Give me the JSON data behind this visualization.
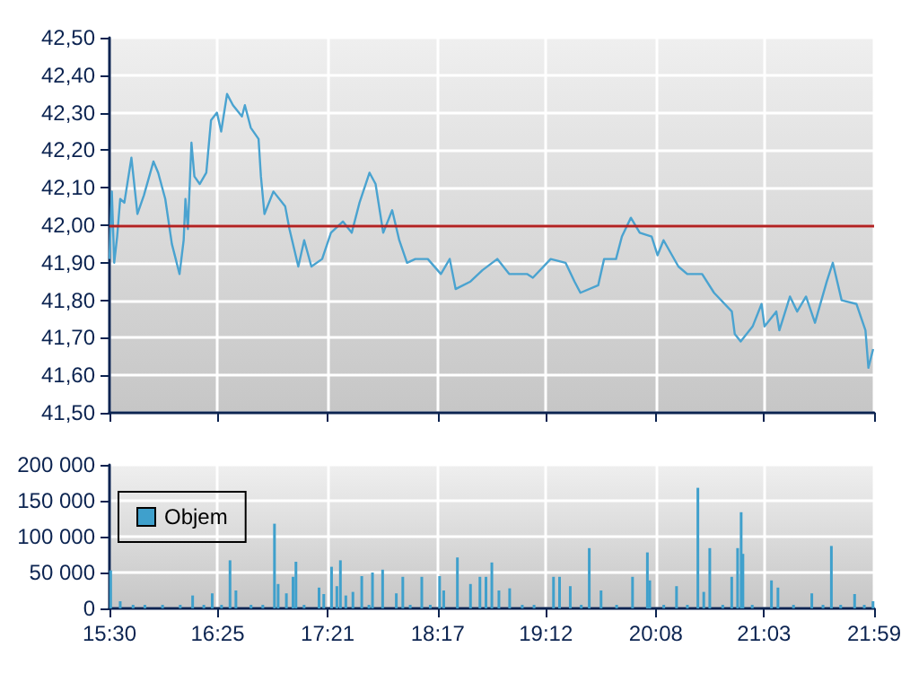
{
  "chart_data": [
    {
      "type": "line",
      "x": [
        15.5,
        15.52,
        15.54,
        15.565,
        15.591,
        15.626,
        15.686,
        15.737,
        15.792,
        15.873,
        15.913,
        15.973,
        16.029,
        16.094,
        16.129,
        16.144,
        16.165,
        16.195,
        16.22,
        16.265,
        16.321,
        16.361,
        16.411,
        16.447,
        16.497,
        16.547,
        16.623,
        16.648,
        16.698,
        16.764,
        16.784,
        16.814,
        16.89,
        16.99,
        17.026,
        17.101,
        17.151,
        17.212,
        17.303,
        17.378,
        17.479,
        17.554,
        17.62,
        17.705,
        17.756,
        17.821,
        17.897,
        17.957,
        18.023,
        18.093,
        18.199,
        18.31,
        18.385,
        18.435,
        18.561,
        18.662,
        18.788,
        18.889,
        19.04,
        19.09,
        19.241,
        19.367,
        19.443,
        19.493,
        19.644,
        19.694,
        19.795,
        19.845,
        19.921,
        19.996,
        20.097,
        20.147,
        20.198,
        20.324,
        20.399,
        20.525,
        20.626,
        20.777,
        20.802,
        20.852,
        20.953,
        21.029,
        21.054,
        21.154,
        21.18,
        21.27,
        21.331,
        21.406,
        21.482,
        21.582,
        21.633,
        21.708,
        21.834,
        21.91,
        21.935,
        21.975
      ],
      "series": [
        {
          "color": "#4aa3d0",
          "values": [
            41.91,
            42.09,
            41.9,
            41.97,
            42.07,
            42.06,
            42.18,
            42.03,
            42.08,
            42.17,
            42.14,
            42.07,
            41.95,
            41.87,
            41.96,
            42.07,
            41.99,
            42.22,
            42.13,
            42.11,
            42.14,
            42.28,
            42.3,
            42.25,
            42.35,
            42.32,
            42.29,
            42.32,
            42.26,
            42.23,
            42.13,
            42.03,
            42.09,
            42.05,
            41.99,
            41.89,
            41.96,
            41.89,
            41.91,
            41.98,
            42.01,
            41.98,
            42.06,
            42.14,
            42.11,
            41.98,
            42.04,
            41.96,
            41.9,
            41.91,
            41.91,
            41.87,
            41.91,
            41.83,
            41.85,
            41.88,
            41.91,
            41.87,
            41.87,
            41.86,
            41.91,
            41.9,
            41.85,
            41.82,
            41.84,
            41.91,
            41.91,
            41.97,
            42.02,
            41.98,
            41.97,
            41.92,
            41.96,
            41.89,
            41.87,
            41.87,
            41.82,
            41.77,
            41.71,
            41.69,
            41.73,
            41.79,
            41.73,
            41.77,
            41.72,
            41.81,
            41.77,
            41.81,
            41.74,
            41.85,
            41.9,
            41.8,
            41.79,
            41.72,
            41.62,
            41.67
          ]
        }
      ],
      "xlim": [
        15.5,
        21.9833
      ],
      "xticks": [
        {
          "value": 15.5,
          "label": null
        },
        {
          "value": 16.4167,
          "label": null
        },
        {
          "value": 17.35,
          "label": null
        },
        {
          "value": 18.2833,
          "label": null
        },
        {
          "value": 19.2,
          "label": null
        },
        {
          "value": 20.1333,
          "label": null
        },
        {
          "value": 21.05,
          "label": null
        },
        {
          "value": 21.9833,
          "label": null
        }
      ],
      "ylim": [
        41.5,
        42.5
      ],
      "yticks": [
        {
          "value": 41.5,
          "label": "41,50"
        },
        {
          "value": 41.6,
          "label": "41,60"
        },
        {
          "value": 41.7,
          "label": "41,70"
        },
        {
          "value": 41.8,
          "label": "41,80"
        },
        {
          "value": 41.9,
          "label": "41,90"
        },
        {
          "value": 42,
          "label": "42,00"
        },
        {
          "value": 42.1,
          "label": "42,10"
        },
        {
          "value": 42.2,
          "label": "42,20"
        },
        {
          "value": 42.3,
          "label": "42,30"
        },
        {
          "value": 42.4,
          "label": "42,40"
        },
        {
          "value": 42.5,
          "label": "42,50"
        }
      ],
      "ref_lines": [
        {
          "axis": "y",
          "value": 42,
          "color": "#b22222"
        }
      ],
      "grid": true,
      "tick_labels": "y"
    },
    {
      "type": "bar",
      "x": [
        15.51,
        15.591,
        15.7,
        15.8,
        15.95,
        16.1,
        16.205,
        16.3,
        16.371,
        16.45,
        16.522,
        16.572,
        16.7,
        16.8,
        16.899,
        16.93,
        17.0,
        17.056,
        17.081,
        17.15,
        17.277,
        17.317,
        17.383,
        17.428,
        17.458,
        17.504,
        17.564,
        17.639,
        17.7,
        17.73,
        17.816,
        17.932,
        17.987,
        18.05,
        18.148,
        18.22,
        18.299,
        18.334,
        18.45,
        18.561,
        18.641,
        18.692,
        18.742,
        18.802,
        18.893,
        19.0,
        19.1,
        19.265,
        19.316,
        19.407,
        19.5,
        19.568,
        19.668,
        19.8,
        19.935,
        20.061,
        20.081,
        20.2,
        20.308,
        20.4,
        20.489,
        20.539,
        20.59,
        20.7,
        20.776,
        20.826,
        20.856,
        20.871,
        20.95,
        21.113,
        21.168,
        21.3,
        21.455,
        21.55,
        21.621,
        21.7,
        21.818,
        21.9,
        21.974
      ],
      "series": [
        {
          "name": "Objem",
          "color": "#3fa0cc",
          "values": [
            53000,
            10000,
            5000,
            5000,
            5000,
            5000,
            18000,
            5000,
            21000,
            5000,
            67000,
            25000,
            5000,
            5000,
            118000,
            34000,
            21000,
            44000,
            65000,
            5000,
            29000,
            20000,
            58000,
            31000,
            67000,
            18000,
            23000,
            45000,
            5000,
            50000,
            54000,
            21000,
            44000,
            5000,
            44000,
            5000,
            45000,
            25000,
            71000,
            34000,
            44000,
            44000,
            64000,
            25000,
            28000,
            5000,
            5000,
            44000,
            44000,
            31000,
            5000,
            84000,
            25000,
            5000,
            44000,
            78000,
            39000,
            5000,
            31000,
            5000,
            168000,
            23000,
            84000,
            5000,
            44000,
            84000,
            134000,
            76000,
            5000,
            39000,
            29000,
            5000,
            21000,
            5000,
            87000,
            5000,
            20000,
            5000,
            10000
          ]
        }
      ],
      "xlim": [
        15.5,
        21.9833
      ],
      "xticks": [
        {
          "value": 15.5,
          "label": "15:30"
        },
        {
          "value": 16.4167,
          "label": "16:25"
        },
        {
          "value": 17.35,
          "label": "17:21"
        },
        {
          "value": 18.2833,
          "label": "18:17"
        },
        {
          "value": 19.2,
          "label": "19:12"
        },
        {
          "value": 20.1333,
          "label": "20:08"
        },
        {
          "value": 21.05,
          "label": "21:03"
        },
        {
          "value": 21.9833,
          "label": "21:59"
        }
      ],
      "ylim": [
        0,
        200000
      ],
      "yticks": [
        0,
        {
          "value": 50000,
          "label": "50 000"
        },
        {
          "value": 100000,
          "label": "100 000"
        },
        {
          "value": 150000,
          "label": "150 000"
        },
        {
          "value": 200000,
          "label": "200 000"
        }
      ],
      "grid": true,
      "legend": "top left"
    }
  ]
}
